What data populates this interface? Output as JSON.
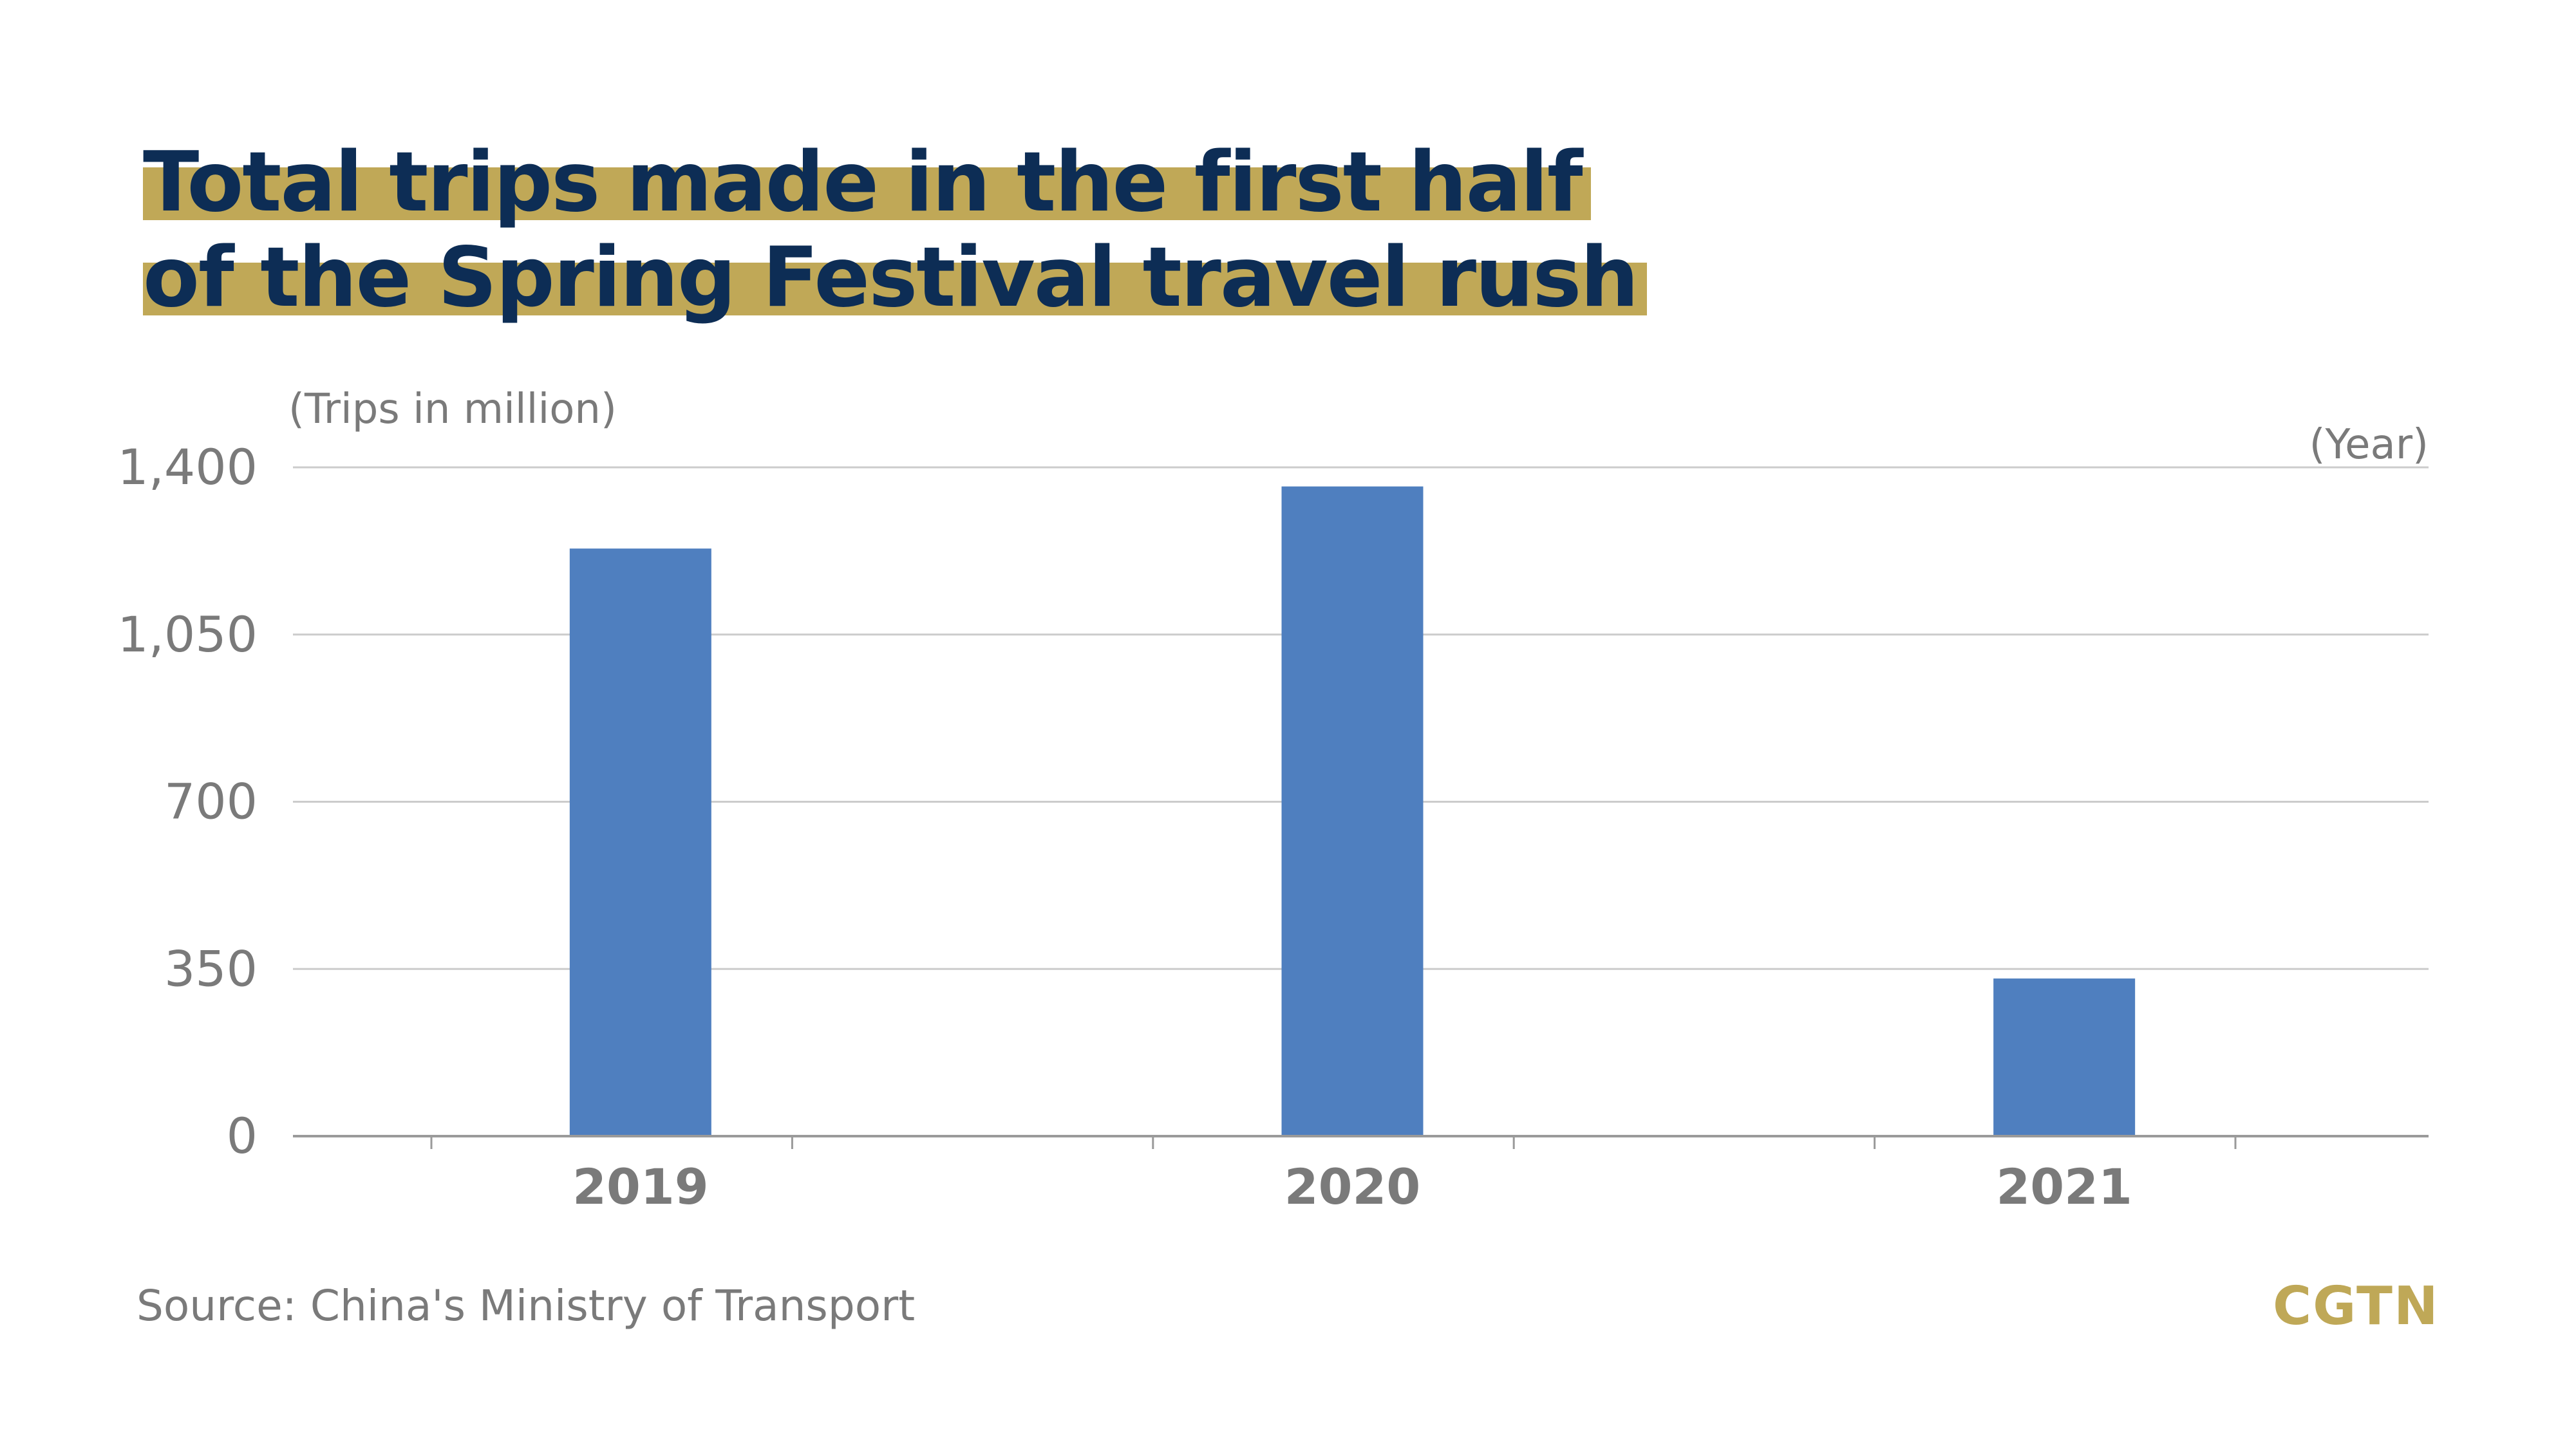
{
  "title": {
    "line1": "Total trips made in the first half",
    "line2": "of the Spring Festival travel rush"
  },
  "source": "Source: China's Ministry of Transport",
  "logo": "CGTN",
  "colors": {
    "bar": "#4f7fbf",
    "title": "#0d2d55",
    "highlight": "#c0a857",
    "text": "#7a7a7a",
    "grid": "#cccccc"
  },
  "chart_data": {
    "type": "bar",
    "title": "Total trips made in the first half of the Spring Festival travel rush",
    "ylabel": "(Trips in million)",
    "xlabel": "(Year)",
    "categories": [
      "2019",
      "2020",
      "2021"
    ],
    "values": [
      1230,
      1360,
      330
    ],
    "ylim": [
      0,
      1400
    ],
    "yticks": [
      0,
      350,
      700,
      1050,
      1400
    ],
    "ytick_labels": [
      "0",
      "350",
      "700",
      "1,050",
      "1,400"
    ],
    "grid": true,
    "legend": "none"
  }
}
